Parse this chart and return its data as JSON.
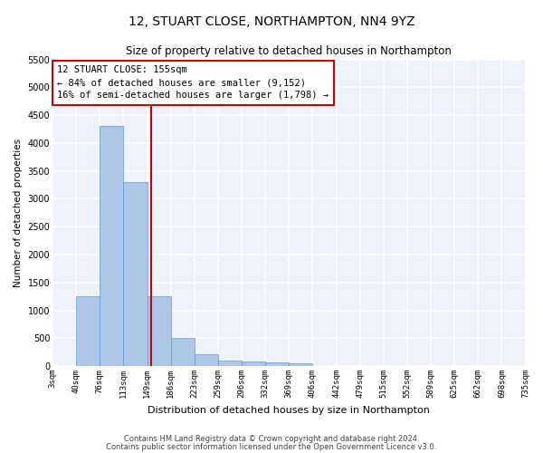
{
  "title": "12, STUART CLOSE, NORTHAMPTON, NN4 9YZ",
  "subtitle": "Size of property relative to detached houses in Northampton",
  "xlabel": "Distribution of detached houses by size in Northampton",
  "ylabel": "Number of detached properties",
  "bin_labels": [
    "3sqm",
    "40sqm",
    "76sqm",
    "113sqm",
    "149sqm",
    "186sqm",
    "223sqm",
    "259sqm",
    "296sqm",
    "332sqm",
    "369sqm",
    "406sqm",
    "442sqm",
    "479sqm",
    "515sqm",
    "552sqm",
    "589sqm",
    "625sqm",
    "662sqm",
    "698sqm",
    "735sqm"
  ],
  "bar_values": [
    0,
    1250,
    4300,
    3300,
    1250,
    500,
    220,
    100,
    80,
    60,
    50,
    0,
    0,
    0,
    0,
    0,
    0,
    0,
    0,
    0,
    0
  ],
  "bar_color": "#aec6e8",
  "bar_edge_color": "#5b9bd5",
  "red_line_color": "#cc0000",
  "ylim": [
    0,
    5500
  ],
  "yticks": [
    0,
    500,
    1000,
    1500,
    2000,
    2500,
    3000,
    3500,
    4000,
    4500,
    5000,
    5500
  ],
  "annotation_text": "12 STUART CLOSE: 155sqm\n← 84% of detached houses are smaller (9,152)\n16% of semi-detached houses are larger (1,798) →",
  "footer_line1": "Contains HM Land Registry data © Crown copyright and database right 2024.",
  "footer_line2": "Contains public sector information licensed under the Open Government Licence v3.0.",
  "bg_color": "#eef2fa",
  "grid_color": "#ffffff",
  "fig_bg_color": "#ffffff"
}
